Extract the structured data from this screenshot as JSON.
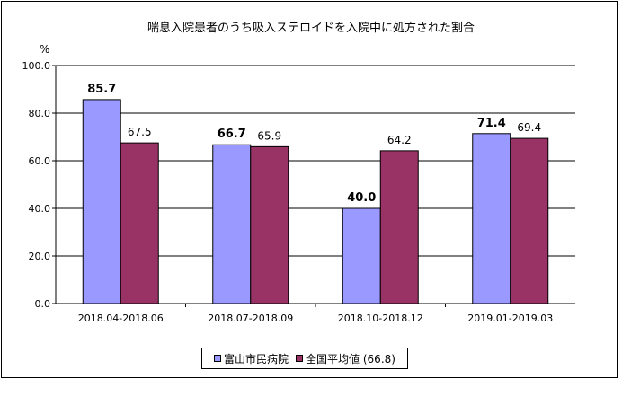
{
  "chart_data": {
    "type": "bar",
    "title": "喘息入院患者のうち吸入ステロイドを入院中に処方された割合",
    "ylabel": "%",
    "xlabel": "",
    "ylim": [
      0,
      100
    ],
    "yticks": [
      "0.0",
      "20.0",
      "40.0",
      "60.0",
      "80.0",
      "100.0"
    ],
    "categories": [
      "2018.04-2018.06",
      "2018.07-2018.09",
      "2018.10-2018.12",
      "2019.01-2019.03"
    ],
    "series": [
      {
        "name": "富山市民病院",
        "values": [
          85.7,
          66.7,
          40.0,
          71.4
        ],
        "labels": [
          "85.7",
          "66.7",
          "40.0",
          "71.4"
        ],
        "color": "#9999ff",
        "label_bold": true
      },
      {
        "name": "全国平均値 (66.8)",
        "values": [
          67.5,
          65.9,
          64.2,
          69.4
        ],
        "labels": [
          "67.5",
          "65.9",
          "64.2",
          "69.4"
        ],
        "color": "#993366",
        "label_bold": false
      }
    ],
    "grid": true,
    "legend_position": "bottom"
  }
}
